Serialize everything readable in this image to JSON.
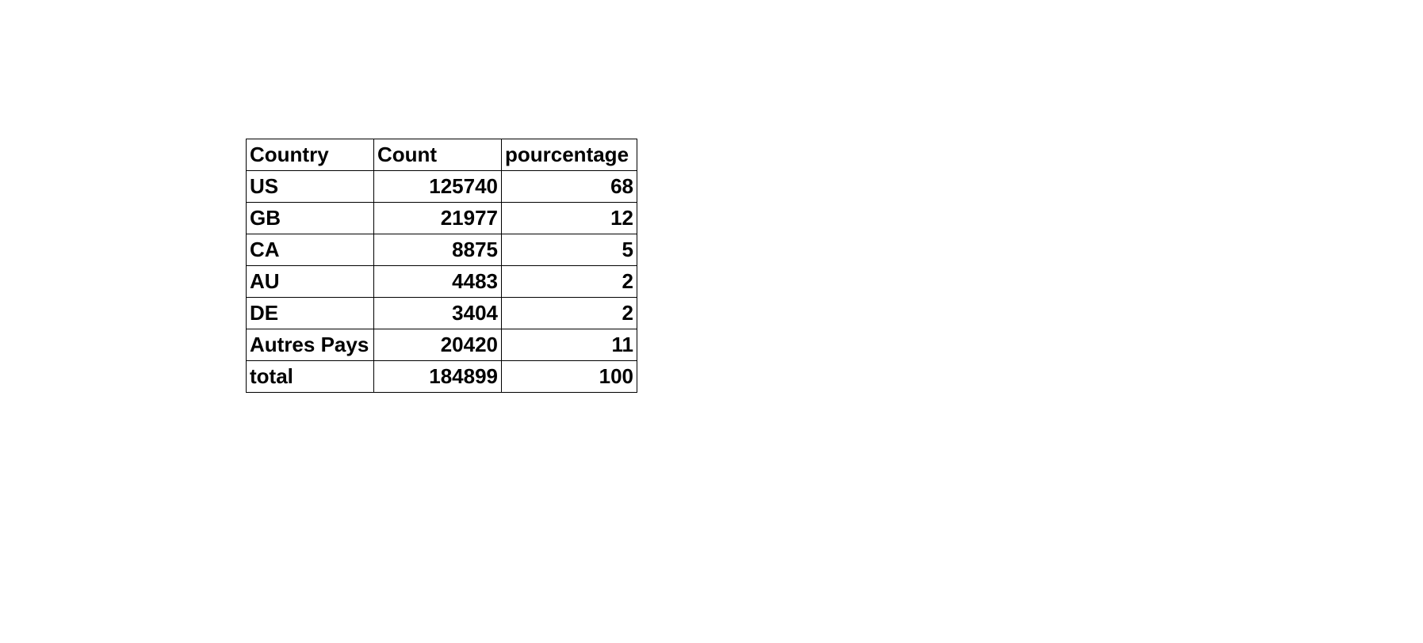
{
  "table": {
    "columns": [
      "Country",
      "Count",
      "pourcentage"
    ],
    "rows": [
      [
        "US",
        "125740",
        "68"
      ],
      [
        "GB",
        "21977",
        "12"
      ],
      [
        "CA",
        "8875",
        "5"
      ],
      [
        "AU",
        "4483",
        "2"
      ],
      [
        "DE",
        "3404",
        "2"
      ],
      [
        "Autres Pays",
        "20420",
        "11"
      ],
      [
        "total",
        "184899",
        "100"
      ]
    ]
  }
}
